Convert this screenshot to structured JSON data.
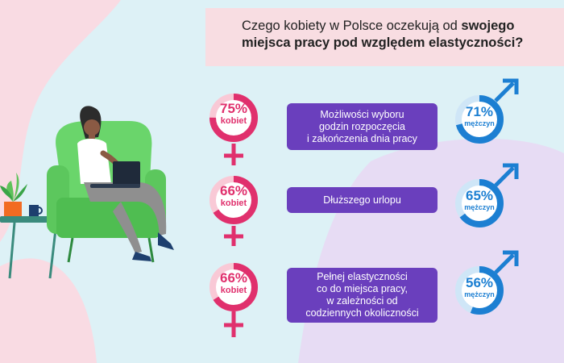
{
  "title": {
    "line1_normal": "Czego kobiety w Polsce oczekują od ",
    "line1_bold": "swojego",
    "line2_bold": "miejsca pracy pod względem elastyczności?"
  },
  "rows": [
    {
      "women": {
        "percent": "75%",
        "label": "kobiet",
        "value": 75
      },
      "item": [
        "Możliwości wyboru",
        "godzin rozpoczęcia",
        "i zakończenia dnia pracy"
      ],
      "men": {
        "percent": "71%",
        "label": "mężczyn",
        "value": 71
      }
    },
    {
      "women": {
        "percent": "66%",
        "label": "kobiet",
        "value": 66
      },
      "item": [
        "Dłuższego urlopu"
      ],
      "men": {
        "percent": "65%",
        "label": "mężczyn",
        "value": 65
      }
    },
    {
      "women": {
        "percent": "66%",
        "label": "kobiet",
        "value": 66
      },
      "item": [
        "Pełnej elastyczności",
        "co do miejsca pracy,",
        "w zależności od",
        "codziennych okoliczności"
      ],
      "men": {
        "percent": "56%",
        "label": "mężczyn",
        "value": 56
      }
    }
  ],
  "colors": {
    "women": "#e0306d",
    "women_track": "#f9c9d6",
    "men": "#1c7fd2",
    "men_track": "#cfe6f7",
    "box": "#6a3fbd",
    "title_bg": "#f8dde2"
  }
}
